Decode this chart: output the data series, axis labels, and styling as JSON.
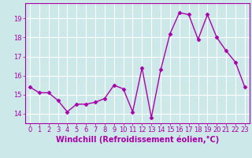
{
  "x": [
    0,
    1,
    2,
    3,
    4,
    5,
    6,
    7,
    8,
    9,
    10,
    11,
    12,
    13,
    14,
    15,
    16,
    17,
    18,
    19,
    20,
    21,
    22,
    23
  ],
  "y": [
    15.4,
    15.1,
    15.1,
    14.7,
    14.1,
    14.5,
    14.5,
    14.6,
    14.8,
    15.5,
    15.3,
    14.1,
    16.4,
    13.8,
    16.3,
    18.2,
    19.3,
    19.2,
    17.9,
    19.2,
    18.0,
    17.3,
    16.7,
    15.4
  ],
  "line_color": "#aa00aa",
  "marker": "D",
  "marker_size": 2.5,
  "linewidth": 1.0,
  "xlabel": "Windchill (Refroidissement éolien,°C)",
  "xlabel_fontsize": 7.0,
  "ylim": [
    13.5,
    19.8
  ],
  "xlim": [
    -0.5,
    23.5
  ],
  "yticks": [
    14,
    15,
    16,
    17,
    18,
    19
  ],
  "xticks": [
    0,
    1,
    2,
    3,
    4,
    5,
    6,
    7,
    8,
    9,
    10,
    11,
    12,
    13,
    14,
    15,
    16,
    17,
    18,
    19,
    20,
    21,
    22,
    23
  ],
  "tick_fontsize": 6.0,
  "background_color": "#cce8e8",
  "grid_color": "#ffffff"
}
